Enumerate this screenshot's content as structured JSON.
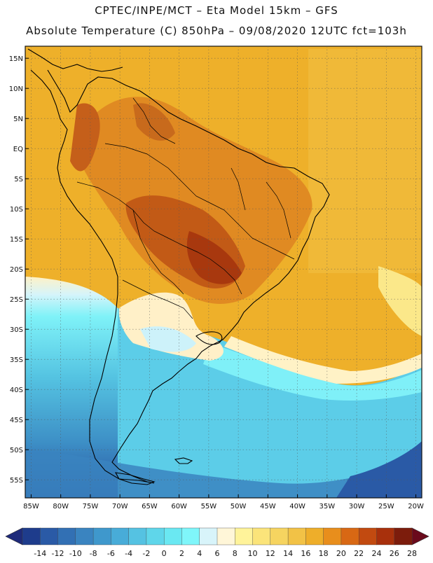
{
  "header": {
    "line1": "CPTEC/INPE/MCT  –   Eta Model 15km  –  GFS",
    "line2": "Absolute Temperature (C) 850hPa – 09/08/2020 12UTC fct=103h"
  },
  "map": {
    "lat_labels": [
      "15N",
      "10N",
      "5N",
      "EQ",
      "5S",
      "10S",
      "15S",
      "20S",
      "25S",
      "30S",
      "35S",
      "40S",
      "45S",
      "50S",
      "55S"
    ],
    "lon_labels": [
      "85W",
      "80W",
      "75W",
      "70W",
      "65W",
      "60W",
      "55W",
      "50W",
      "45W",
      "40W",
      "35W",
      "30W",
      "25W",
      "20W"
    ],
    "lat_values": [
      15,
      10,
      5,
      0,
      -5,
      -10,
      -15,
      -20,
      -25,
      -30,
      -35,
      -40,
      -45,
      -50,
      -55
    ],
    "lon_values": [
      -85,
      -80,
      -75,
      -70,
      -65,
      -60,
      -55,
      -50,
      -45,
      -40,
      -35,
      -30,
      -25,
      -20
    ]
  },
  "colorbar": {
    "labels": [
      "-14",
      "-12",
      "-10",
      "-8",
      "-6",
      "-4",
      "-2",
      "0",
      "2",
      "4",
      "6",
      "8",
      "10",
      "12",
      "14",
      "16",
      "18",
      "20",
      "22",
      "24",
      "26",
      "28"
    ],
    "colors": [
      "#1e3c8c",
      "#2a5aa6",
      "#3270b4",
      "#3a84c0",
      "#3f98cc",
      "#48acd8",
      "#55c2e2",
      "#5fd6ea",
      "#6ae8f2",
      "#7ff6fa",
      "#d8f4fa",
      "#fff6d8",
      "#fff39a",
      "#fbe47a",
      "#f6d460",
      "#f2c246",
      "#eeae2a",
      "#e88e1c",
      "#d86814",
      "#c24a10",
      "#a8300c",
      "#7c1c0c"
    ],
    "arrow_low_color": "#1e2a7a",
    "arrow_high_color": "#6a0a1c"
  }
}
